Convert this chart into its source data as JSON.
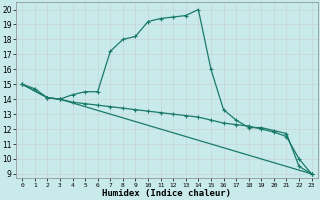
{
  "bg_color": "#c8eaea",
  "grid_color": "#d0e8e8",
  "line_color": "#1a7a6a",
  "xlabel": "Humidex (Indice chaleur)",
  "xlim": [
    -0.5,
    23.5
  ],
  "ylim": [
    8.7,
    20.5
  ],
  "xticks": [
    0,
    1,
    2,
    3,
    4,
    5,
    6,
    7,
    8,
    9,
    10,
    11,
    12,
    13,
    14,
    15,
    16,
    17,
    18,
    19,
    20,
    21,
    22,
    23
  ],
  "yticks": [
    9,
    10,
    11,
    12,
    13,
    14,
    15,
    16,
    17,
    18,
    19,
    20
  ],
  "line1_x": [
    0,
    1,
    2,
    3,
    4,
    5,
    6,
    7,
    8,
    9,
    10,
    11,
    12,
    13,
    14,
    15,
    16,
    17,
    18,
    19,
    20,
    21,
    22,
    23
  ],
  "line1_y": [
    15.0,
    14.7,
    14.1,
    14.0,
    14.3,
    14.5,
    14.5,
    17.2,
    18.0,
    18.2,
    19.2,
    19.4,
    19.5,
    19.6,
    20.0,
    16.0,
    13.3,
    12.6,
    12.1,
    12.1,
    11.9,
    11.7,
    9.5,
    9.0
  ],
  "line2_x": [
    0,
    2,
    3,
    4,
    5,
    6,
    7,
    8,
    9,
    10,
    11,
    12,
    13,
    14,
    15,
    16,
    17,
    18,
    19,
    20,
    21,
    22,
    23
  ],
  "line2_y": [
    15.0,
    14.1,
    14.0,
    13.8,
    13.7,
    13.6,
    13.5,
    13.4,
    13.3,
    13.2,
    13.1,
    13.0,
    12.9,
    12.8,
    12.6,
    12.4,
    12.3,
    12.2,
    12.0,
    11.8,
    11.5,
    10.0,
    9.0
  ],
  "line3_x": [
    0,
    2,
    3,
    23
  ],
  "line3_y": [
    15.0,
    14.1,
    14.0,
    9.0
  ]
}
